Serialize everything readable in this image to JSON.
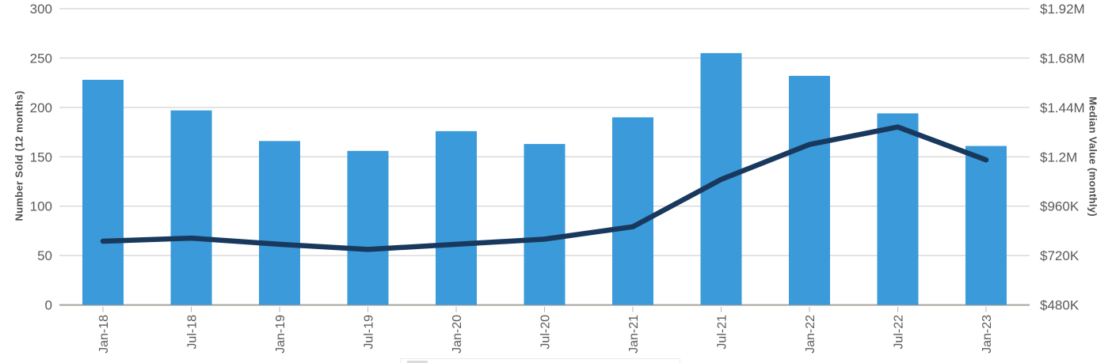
{
  "chart_data": {
    "type": "combo-bar-line",
    "title": "",
    "categories": [
      "Jan-18",
      "Jul-18",
      "Jan-19",
      "Jul-19",
      "Jan-20",
      "Jul-20",
      "Jan-21",
      "Jul-21",
      "Jan-22",
      "Jul-22",
      "Jan-23"
    ],
    "series": [
      {
        "name": "Number Sold (12 months)",
        "type": "bar",
        "axis": "left",
        "color": "#3b9ad9",
        "values": [
          228,
          197,
          166,
          156,
          176,
          163,
          190,
          255,
          232,
          194,
          161
        ]
      },
      {
        "name": "Median Value (monthly)",
        "type": "line",
        "axis": "right",
        "color": "#18395d",
        "values": [
          790000,
          805000,
          775000,
          750000,
          775000,
          800000,
          860000,
          1090000,
          1260000,
          1345000,
          1185000
        ]
      }
    ],
    "left_axis": {
      "label": "Number Sold (12 months)",
      "min": 0,
      "max": 300,
      "tick_step": 50,
      "tick_labels": [
        "300",
        "250",
        "200",
        "150",
        "100",
        "50",
        "0"
      ]
    },
    "right_axis": {
      "label": "Median Value (monthly)",
      "min": 480000,
      "max": 1920000,
      "tick_step": 240000,
      "tick_labels": [
        "$1.92M",
        "$1.68M",
        "$1.44M",
        "$1.2M",
        "$960K",
        "$720K",
        "$480K"
      ]
    },
    "grid": true,
    "legend_position": "bottom (cut off at screenshot edge)"
  },
  "colors": {
    "bar": "#3b9ad9",
    "line": "#18395d",
    "gridline": "#c9c9c9",
    "axis_line": "#a9a29b",
    "tick_mark": "#b5b5b5",
    "tick_text": "#595a5c",
    "axis_title_text": "#4d4e50",
    "background": "#ffffff"
  }
}
